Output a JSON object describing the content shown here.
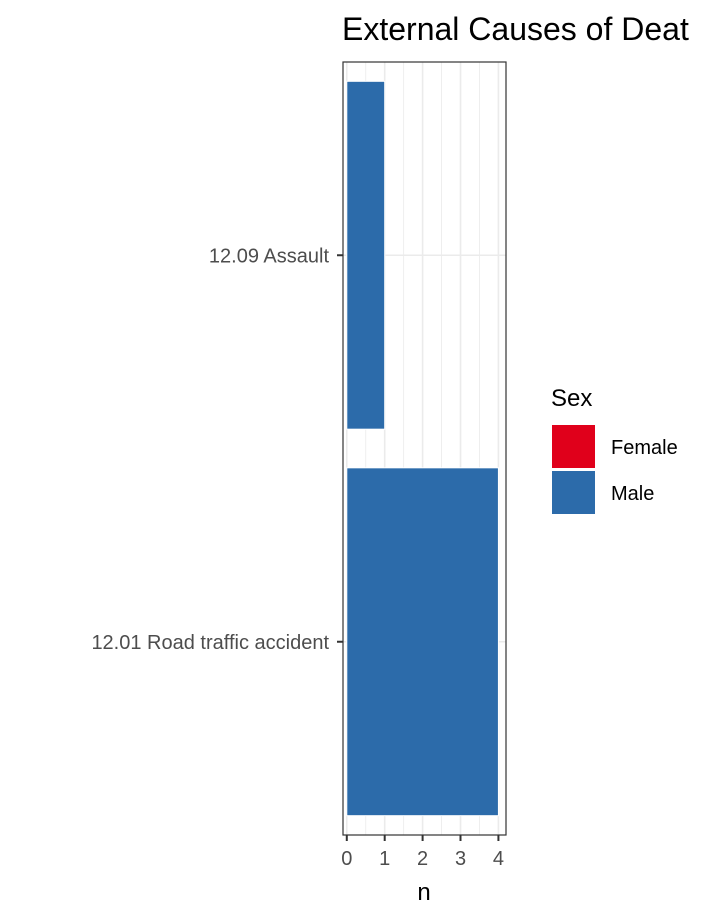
{
  "chart_data": {
    "type": "bar",
    "orientation": "horizontal",
    "stacked": true,
    "title": "External Causes of Deat",
    "xlabel": "n",
    "ylabel": "",
    "categories": [
      "12.09 Assault",
      "12.01 Road traffic accident"
    ],
    "series": [
      {
        "name": "Female",
        "color": "#E0001B",
        "values": [
          0,
          0
        ]
      },
      {
        "name": "Male",
        "color": "#2C6BAA",
        "values": [
          1,
          4
        ]
      }
    ],
    "xlim": [
      -0.1,
      4.2
    ],
    "xticks": [
      0,
      1,
      2,
      3,
      4
    ],
    "grid": true,
    "legend": {
      "title": "Sex",
      "position": "right",
      "entries": [
        "Female",
        "Male"
      ]
    }
  }
}
